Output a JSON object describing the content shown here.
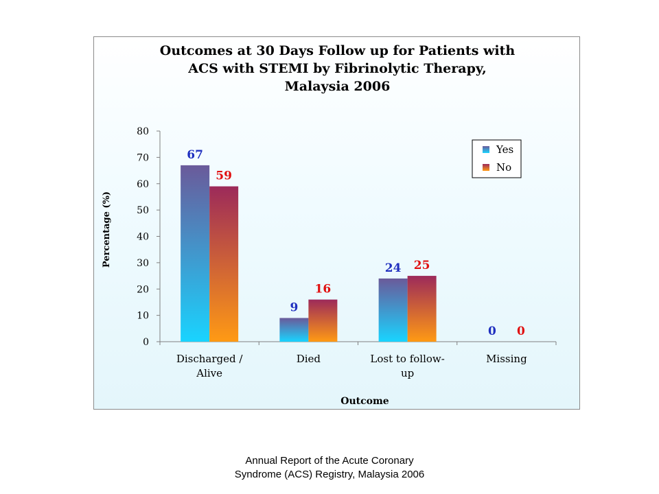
{
  "chart_data": {
    "type": "bar",
    "title_lines": [
      "Outcomes at 30 Days Follow up for Patients with",
      "ACS with STEMI by Fibrinolytic Therapy,",
      "Malaysia 2006"
    ],
    "xlabel": "Outcome",
    "ylabel": "Percentage (%)",
    "ylim": [
      0,
      80
    ],
    "yticks": [
      0,
      10,
      20,
      30,
      40,
      50,
      60,
      70,
      80
    ],
    "categories": [
      [
        "Discharged /",
        "Alive"
      ],
      [
        "Died"
      ],
      [
        "Lost to follow-",
        "up"
      ],
      [
        "Missing"
      ]
    ],
    "series": [
      {
        "name": "Yes",
        "values": [
          67,
          9,
          24,
          0
        ],
        "label_color": "#1f2fbf",
        "color_top": "#6a5a9a",
        "color_bottom": "#19d4ff"
      },
      {
        "name": "No",
        "values": [
          59,
          16,
          25,
          0
        ],
        "label_color": "#e01010",
        "color_top": "#9c2a5a",
        "color_bottom": "#ff9a14"
      }
    ],
    "legend_position": "top-right",
    "grid": false
  },
  "footer": {
    "line1": "Annual Report of the Acute Coronary",
    "line2": "Syndrome (ACS) Registry, Malaysia 2006"
  }
}
